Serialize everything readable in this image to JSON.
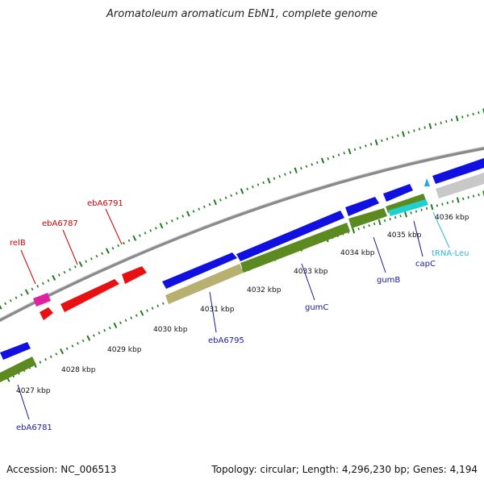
{
  "title": "Aromatoleum aromaticum EbN1, complete genome",
  "footer": {
    "accession": "Accession: NC_006513",
    "summary": "Topology: circular; Length: 4,296,230 bp; Genes: 4,194"
  },
  "colors": {
    "backbone": "#8a8a8a",
    "cds_forward": "#1010e0",
    "cds_reverse_highlight": "#e81010",
    "cds_pink": "#e020a0",
    "gene": "#5a8a20",
    "gene_light": "#b8b070",
    "trna": "#20d0d0",
    "pseudo": "#c8c8c8",
    "tick": "#207a20",
    "label_blue": "#1a1aa0",
    "label_red": "#cc0000",
    "label_cyan": "#30b8d8"
  },
  "scale_labels": [
    "4027 kbp",
    "4028 kbp",
    "4029 kbp",
    "4030 kbp",
    "4031 kbp",
    "4032 kbp",
    "4033 kbp",
    "4034 kbp",
    "4035 kbp",
    "4036 kbp"
  ],
  "feature_labels": [
    {
      "text": "relB",
      "color": "red"
    },
    {
      "text": "ebA6787",
      "color": "red"
    },
    {
      "text": "ebA6791",
      "color": "red"
    },
    {
      "text": "ebA6795",
      "color": "blue"
    },
    {
      "text": "gumC",
      "color": "blue"
    },
    {
      "text": "gumB",
      "color": "blue"
    },
    {
      "text": "capC",
      "color": "blue"
    },
    {
      "text": "tRNA-Leu",
      "color": "cyan"
    },
    {
      "text": "ebA6781",
      "color": "blue"
    }
  ]
}
